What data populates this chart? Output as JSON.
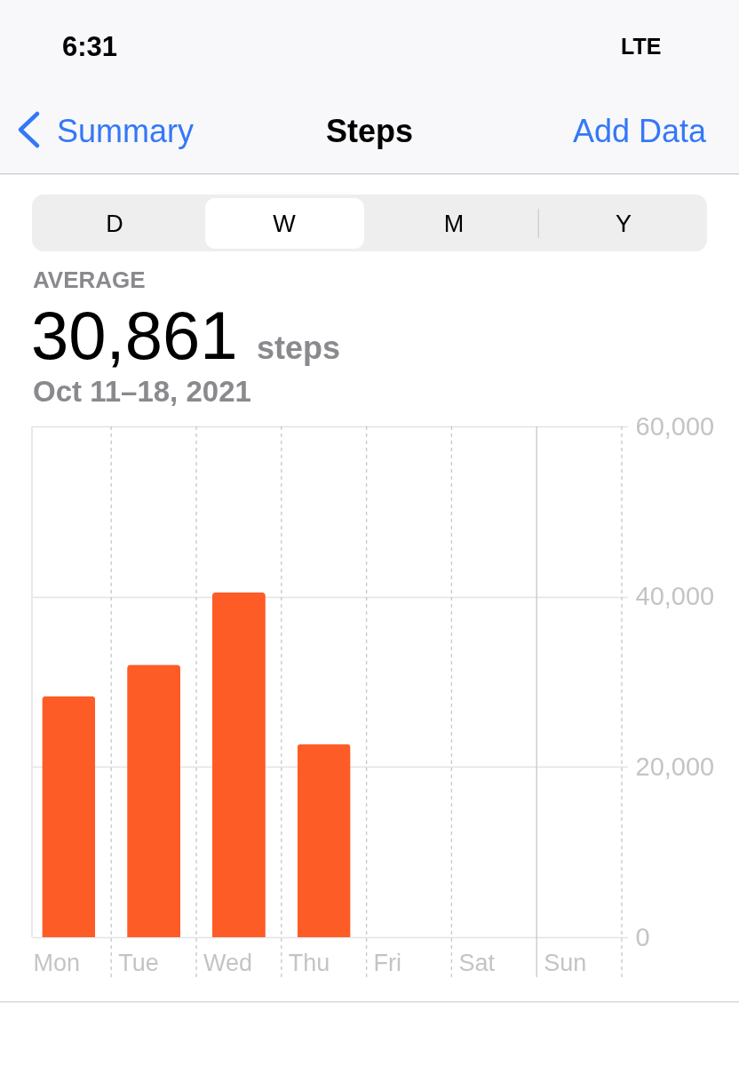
{
  "chart_data": {
    "type": "bar",
    "title": "Steps",
    "annotations": [
      "6:31",
      "LTE",
      "Summary",
      "Add Data",
      "D",
      "W",
      "M",
      "Y",
      "AVERAGE",
      "30,861",
      "steps",
      "Oct 11–18, 2021"
    ],
    "categories": [
      "Mon",
      "Tue",
      "Wed",
      "Thu",
      "Fri",
      "Sat",
      "Sun"
    ],
    "values": [
      28300,
      32000,
      40500,
      22700,
      null,
      null,
      null
    ],
    "color": "#fe5c26",
    "ylim": [
      0,
      60000
    ],
    "yticks": [
      0,
      {
        "value": 20000,
        "label": "20,000"
      },
      {
        "value": 40000,
        "label": "40,000"
      },
      {
        "value": 60000,
        "label": "60,000"
      }
    ],
    "ref_lines": [
      {
        "axis": "x",
        "value": "Sun",
        "color": "#c7c7cc",
        "line_style": "solid"
      }
    ],
    "grid": true
  }
}
